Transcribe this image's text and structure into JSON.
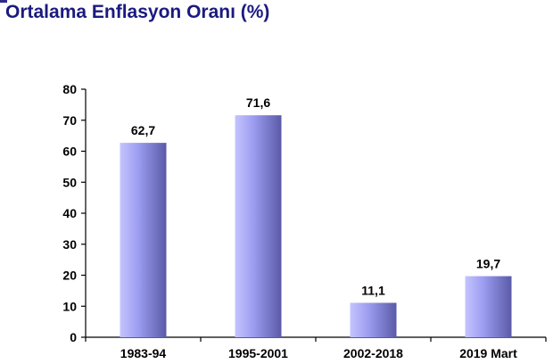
{
  "chart_data": {
    "type": "bar",
    "title": "Ortalama Enflasyon Oranı (%)",
    "categories": [
      "1983-94",
      "1995-2001",
      "2002-2018",
      "2019 Mart"
    ],
    "values": [
      62.7,
      71.6,
      11.1,
      19.7
    ],
    "value_labels": [
      "62,7",
      "71,6",
      "11,1",
      "19,7"
    ],
    "y_ticks": [
      0,
      10,
      20,
      30,
      40,
      50,
      60,
      70,
      80
    ],
    "ylim": [
      0,
      80
    ],
    "xlabel": "",
    "ylabel": "",
    "grid": false,
    "legend": "none",
    "colors": {
      "bar_light": "#c4c4ff",
      "bar_mid": "#9c9cf0",
      "bar_dark": "#5a5aa8",
      "title": "#1a1a80",
      "axis": "#000000"
    }
  }
}
